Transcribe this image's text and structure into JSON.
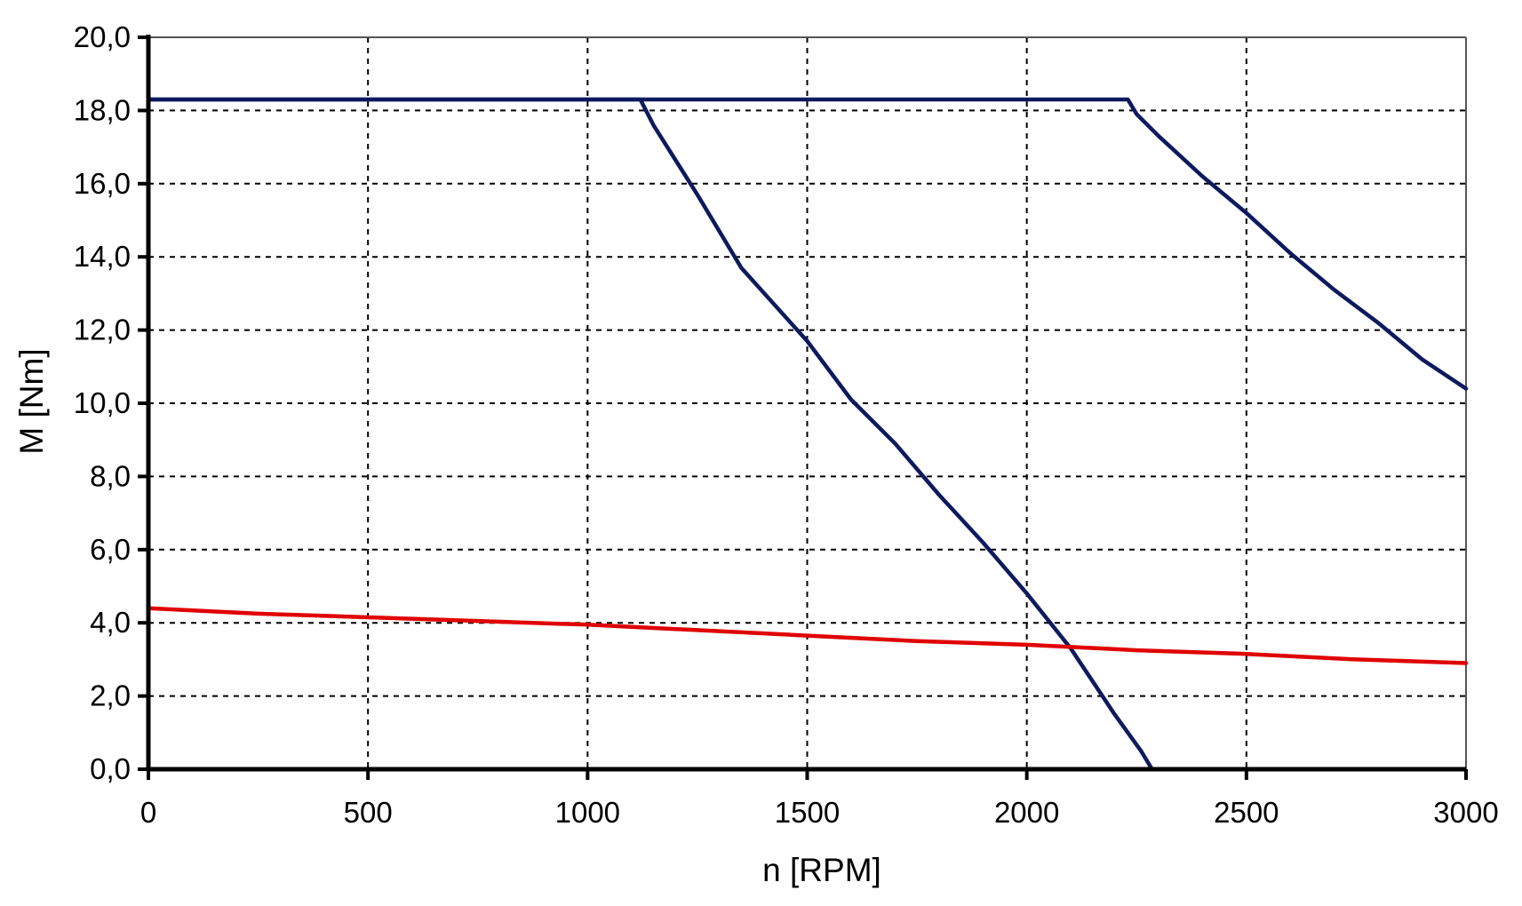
{
  "chart_data": {
    "type": "line",
    "title": "",
    "xlabel": "n [RPM]",
    "ylabel": "M [Nm]",
    "xlim": [
      0,
      3000
    ],
    "ylim": [
      0,
      20
    ],
    "x_ticks": [
      0,
      500,
      1000,
      1500,
      2000,
      2500,
      3000
    ],
    "x_tick_labels": [
      "0",
      "500",
      "1000",
      "1500",
      "2000",
      "2500",
      "3000"
    ],
    "y_ticks": [
      0,
      2,
      4,
      6,
      8,
      10,
      12,
      14,
      16,
      18,
      20
    ],
    "y_tick_labels": [
      "0,0",
      "2,0",
      "4,0",
      "6,0",
      "8,0",
      "10,0",
      "12,0",
      "14,0",
      "16,0",
      "18,0",
      "20,0"
    ],
    "grid": true,
    "legend": "none",
    "series": [
      {
        "color": "#0d1a5e",
        "x": [
          0,
          1120,
          1150,
          1250,
          1350,
          1500,
          1600,
          1700,
          1800,
          1900,
          2000,
          2100,
          2200,
          2260,
          2285
        ],
        "y": [
          18.3,
          18.3,
          17.6,
          15.7,
          13.7,
          11.7,
          10.1,
          8.9,
          7.5,
          6.2,
          4.8,
          3.3,
          1.5,
          0.5,
          0.0
        ]
      },
      {
        "color": "#0d1a5e",
        "x": [
          0,
          2230,
          2250,
          2300,
          2400,
          2500,
          2600,
          2700,
          2800,
          2900,
          3000
        ],
        "y": [
          18.3,
          18.3,
          17.9,
          17.3,
          16.2,
          15.2,
          14.1,
          13.1,
          12.2,
          11.2,
          10.4
        ]
      },
      {
        "color": "#e00000",
        "x": [
          0,
          250,
          500,
          750,
          1000,
          1250,
          1500,
          1750,
          2000,
          2250,
          2500,
          2750,
          3000
        ],
        "y": [
          4.4,
          4.25,
          4.15,
          4.05,
          3.95,
          3.8,
          3.65,
          3.5,
          3.4,
          3.25,
          3.15,
          3.0,
          2.9
        ]
      }
    ]
  }
}
